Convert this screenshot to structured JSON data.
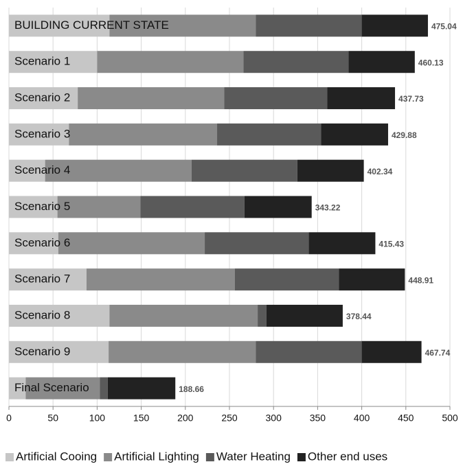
{
  "chart_data": {
    "type": "stacked-barh",
    "categories": [
      "BUILDING CURRENT STATE",
      "Scenario 1",
      "Scenario 2",
      "Scenario 3",
      "Scenario 4",
      "Scenario 5",
      "Scenario 6",
      "Scenario 7",
      "Scenario 8",
      "Scenario 9",
      "Final Scenario"
    ],
    "series": [
      {
        "name": "Artificial Cooing",
        "color": "#c6c6c6",
        "values": [
          114,
          100,
          78,
          68,
          41,
          55,
          56,
          88,
          114,
          113,
          19
        ]
      },
      {
        "name": "Artificial Lighting",
        "color": "#8a8a8a",
        "values": [
          166,
          166,
          166,
          168,
          166,
          94,
          166,
          168,
          168,
          167,
          84
        ]
      },
      {
        "name": "Water Heating",
        "color": "#5a5a5a",
        "values": [
          120,
          119,
          117,
          118,
          120,
          118,
          118,
          118,
          10,
          120,
          9
        ]
      },
      {
        "name": "Other end uses",
        "color": "#222222",
        "values": [
          75.04,
          75.13,
          76.73,
          75.88,
          75.34,
          76.22,
          75.43,
          74.91,
          86.44,
          67.74,
          76.66
        ]
      }
    ],
    "totals": [
      475.04,
      460.13,
      437.73,
      429.88,
      402.34,
      343.22,
      415.43,
      448.91,
      378.44,
      467.74,
      188.66
    ],
    "xlim": [
      0,
      500
    ],
    "xticks": [
      0,
      50,
      100,
      150,
      200,
      250,
      300,
      350,
      400,
      450,
      500
    ],
    "grid": true,
    "legend": "bottom"
  }
}
